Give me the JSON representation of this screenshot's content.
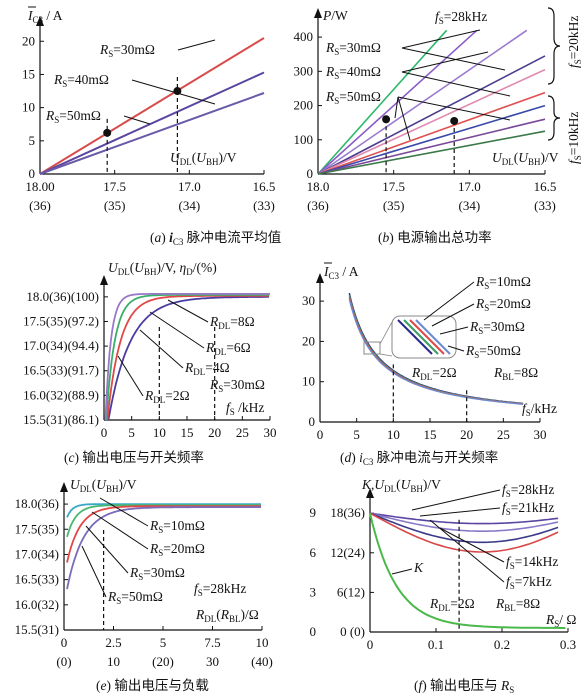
{
  "chart_data": [
    {
      "id": "a",
      "type": "line",
      "caption": "(a) iC3 脉冲电流平均值",
      "ylabel": "Ī C3 / A",
      "xlabel": "UDL(UBH)/V",
      "xlim": [
        18.0,
        16.5
      ],
      "ylim": [
        0,
        22
      ],
      "xticks": [
        {
          "v": 18.0,
          "t": "18.00",
          "t2": "(36)"
        },
        {
          "v": 17.5,
          "t": "17.5",
          "t2": "(35)"
        },
        {
          "v": 17.0,
          "t": "17.0",
          "t2": "(34)"
        },
        {
          "v": 16.5,
          "t": "16.5",
          "t2": "(33)"
        }
      ],
      "yticks": [
        0,
        5,
        10,
        15,
        20
      ],
      "series": [
        {
          "name": "RS=30mΩ",
          "color": "#d84c4c",
          "x": [
            18.0,
            16.5
          ],
          "y": [
            0,
            20.5
          ]
        },
        {
          "name": "RS=40mΩ",
          "color": "#5a46a0",
          "x": [
            18.0,
            16.5
          ],
          "y": [
            0,
            15.3
          ]
        },
        {
          "name": "RS=50mΩ",
          "color": "#6a5aa8",
          "x": [
            18.0,
            16.5
          ],
          "y": [
            0,
            12.2
          ]
        }
      ],
      "markers": [
        {
          "x": 17.55,
          "y": 6.2
        },
        {
          "x": 17.08,
          "y": 12.5
        }
      ],
      "labels": [
        "RS=30mΩ",
        "RS=40mΩ",
        "RS=50mΩ"
      ]
    },
    {
      "id": "b",
      "type": "line",
      "caption": "(b) 电源输出总功率",
      "ylabel": "P/W",
      "xlabel": "UDL(UBH)/V",
      "xlim": [
        18.0,
        16.5
      ],
      "ylim": [
        0,
        450
      ],
      "xticks": [
        {
          "v": 18.0,
          "t": "18.0",
          "t2": "(36)"
        },
        {
          "v": 17.5,
          "t": "17.5",
          "t2": "(35)"
        },
        {
          "v": 17.0,
          "t": "17.0",
          "t2": "(34)"
        },
        {
          "v": 16.5,
          "t": "16.5",
          "t2": "(33)"
        }
      ],
      "yticks": [
        0,
        100,
        200,
        300,
        400
      ],
      "series": [
        {
          "name": "fS=28kHz",
          "color": "#2db86a",
          "x": [
            18.0,
            17.15
          ],
          "y": [
            0,
            420
          ]
        },
        {
          "name": "",
          "color": "#8a5cc8",
          "x": [
            18.0,
            16.95
          ],
          "y": [
            0,
            420
          ]
        },
        {
          "name": "",
          "color": "#9a7ad0",
          "x": [
            18.0,
            16.62
          ],
          "y": [
            0,
            420
          ]
        },
        {
          "name": "",
          "color": "#4a3c90",
          "x": [
            18.0,
            16.5
          ],
          "y": [
            0,
            345
          ]
        },
        {
          "name": "",
          "color": "#e08ab0",
          "x": [
            18.0,
            16.5
          ],
          "y": [
            0,
            305
          ]
        },
        {
          "name": "",
          "color": "#e05050",
          "x": [
            18.0,
            16.5
          ],
          "y": [
            0,
            238
          ]
        },
        {
          "name": "",
          "color": "#3a4aa8",
          "x": [
            18.0,
            16.5
          ],
          "y": [
            0,
            200
          ]
        },
        {
          "name": "",
          "color": "#7a4a9a",
          "x": [
            18.0,
            16.5
          ],
          "y": [
            0,
            160
          ]
        },
        {
          "name": "",
          "color": "#3a7a4a",
          "x": [
            18.0,
            16.5
          ],
          "y": [
            0,
            125
          ]
        }
      ],
      "markers": [
        {
          "x": 17.55,
          "y": 160
        },
        {
          "x": 17.1,
          "y": 155
        }
      ],
      "labels": [
        "fS=28kHz",
        "RS=30mΩ",
        "RS=40mΩ",
        "RS=50mΩ",
        "fS=20kHz",
        "fS=10kHz"
      ]
    },
    {
      "id": "c",
      "type": "line",
      "caption": "(c) 输出电压与开关频率",
      "ylabel": "UDL(UBH)/V, ηD/(%)",
      "xlabel": "fS /kHz",
      "xlim": [
        0,
        30
      ],
      "ylim": [
        15.5,
        18.2
      ],
      "xticks": [
        0,
        5,
        10,
        15,
        20,
        25,
        30
      ],
      "yticks": [
        {
          "v": 18.0,
          "t": "18.0(36)(100)"
        },
        {
          "v": 17.5,
          "t": "17.5(35)(97.2)"
        },
        {
          "v": 17.0,
          "t": "17.0(34)(94.4)"
        },
        {
          "v": 16.5,
          "t": "16.5(33)(91.7)"
        },
        {
          "v": 16.0,
          "t": "16.0(32)(88.9)"
        },
        {
          "v": 15.5,
          "t": "15.5(31)(86.1)"
        }
      ],
      "series": [
        {
          "name": "RDL=2Ω",
          "color": "#4a3ca0",
          "x0": 0.8,
          "k": 4.3,
          "top": 18.0
        },
        {
          "name": "RDL=4Ω",
          "color": "#e04848",
          "x0": 0.6,
          "k": 2.6,
          "top": 18.02
        },
        {
          "name": "RDL=6Ω",
          "color": "#38b06a",
          "x0": 0.4,
          "k": 1.7,
          "top": 18.04
        },
        {
          "name": "RDL=8Ω",
          "color": "#9a78c8",
          "x0": 0.25,
          "k": 1.1,
          "top": 18.06
        }
      ],
      "dashed_x": [
        10,
        20
      ],
      "labels": [
        "RDL=8Ω",
        "RDL=6Ω",
        "RDL=4Ω",
        "RS=30mΩ",
        "RDL=2Ω"
      ]
    },
    {
      "id": "d",
      "type": "line",
      "caption": "(d) iC3 脉冲电流与开关频率",
      "ylabel": "Ī C3 / A",
      "xlabel": "fS /kHz",
      "xlim": [
        0,
        30
      ],
      "ylim": [
        0,
        34
      ],
      "xticks": [
        0,
        5,
        10,
        15,
        20,
        25,
        30
      ],
      "yticks": [
        0,
        10,
        20,
        30
      ],
      "series": [
        {
          "name": "RS=10mΩ",
          "color": "#2a2a8a",
          "a": 128
        },
        {
          "name": "RS=20mΩ",
          "color": "#38a060",
          "a": 126
        },
        {
          "name": "RS=30mΩ",
          "color": "#e04848",
          "a": 124
        },
        {
          "name": "RS=50mΩ",
          "color": "#6a8ad0",
          "a": 122
        }
      ],
      "dashed_x": [
        10,
        20
      ],
      "labels": [
        "RS=10mΩ",
        "RS=20mΩ",
        "RS=30mΩ",
        "RS=50mΩ",
        "RDL=2Ω",
        "RBL=8Ω"
      ]
    },
    {
      "id": "e",
      "type": "line",
      "caption": "(e) 输出电压与负载",
      "ylabel": "UDL(UBH)/V",
      "xlabel": "RDL(RBL)/Ω",
      "xlim": [
        0,
        10
      ],
      "ylim": [
        15.5,
        18.2
      ],
      "xticks": [
        {
          "v": 0,
          "t": "0",
          "t2": "(0)"
        },
        {
          "v": 2.5,
          "t": "2.5",
          "t2": "10"
        },
        {
          "v": 5,
          "t": "5",
          "t2": "(20)"
        },
        {
          "v": 7.5,
          "t": "7.5",
          "t2": "30"
        },
        {
          "v": 10,
          "t": "10",
          "t2": "(40)"
        }
      ],
      "yticks": [
        {
          "v": 18.0,
          "t": "18.0(36)"
        },
        {
          "v": 17.5,
          "t": "17.5(35)"
        },
        {
          "v": 17.0,
          "t": "17.0(34)"
        },
        {
          "v": 16.5,
          "t": "16.5(33)"
        },
        {
          "v": 16.0,
          "t": "16.0(32)"
        },
        {
          "v": 15.5,
          "t": "15.5(31)"
        }
      ],
      "series": [
        {
          "name": "RS=10mΩ",
          "color": "#38a8c8",
          "y0": 17.55,
          "k": 0.28,
          "top": 18.0
        },
        {
          "name": "RS=20mΩ",
          "color": "#48b870",
          "y0": 17.1,
          "k": 0.45,
          "top": 17.98
        },
        {
          "name": "RS=30mΩ",
          "color": "#e04848",
          "y0": 16.55,
          "k": 0.65,
          "top": 17.96
        },
        {
          "name": "RS=50mΩ",
          "color": "#7a6ab8",
          "y0": 16.0,
          "k": 0.85,
          "top": 17.94
        }
      ],
      "dashed_x": [
        2
      ],
      "labels": [
        "RS=10mΩ",
        "RS=20mΩ",
        "RS=30mΩ",
        "RS=50mΩ",
        "fS=28kHz"
      ]
    },
    {
      "id": "f",
      "type": "line",
      "caption": "(f) 输出电压与 RS",
      "ylabel": "K,UDL(UBH)/V",
      "xlabel": "RS/ Ω",
      "xlim": [
        0,
        0.3
      ],
      "ylim": [
        0,
        10
      ],
      "xticks": [
        0,
        0.1,
        0.2,
        0.3
      ],
      "yticks": [
        {
          "v": 0,
          "t": "0",
          "t2": "0 (0)"
        },
        {
          "v": 3,
          "t": "3",
          "t2": "6(12)"
        },
        {
          "v": 6,
          "t": "6",
          "t2": "12(24)"
        },
        {
          "v": 9,
          "t": "9",
          "t2": "18(36)"
        }
      ],
      "series": [
        {
          "name": "fS=28kHz",
          "color": "#5a46a0",
          "end": 8.25
        },
        {
          "name": "fS=21kHz",
          "color": "#8a78c8",
          "end": 7.7
        },
        {
          "name": "fS=14kHz",
          "color": "#3a3a8a",
          "end": 6.9
        },
        {
          "name": "fS=7kHz",
          "color": "#d84848",
          "end": 6.2
        }
      ],
      "k_curve": {
        "name": "K",
        "color": "#4ab84a"
      },
      "dashed_x": [
        0.135
      ],
      "labels": [
        "fS=28kHz",
        "fS=21kHz",
        "fS=14kHz",
        "fS=7kHz",
        "K",
        "RDL=2Ω",
        "RBL=8Ω"
      ]
    }
  ]
}
